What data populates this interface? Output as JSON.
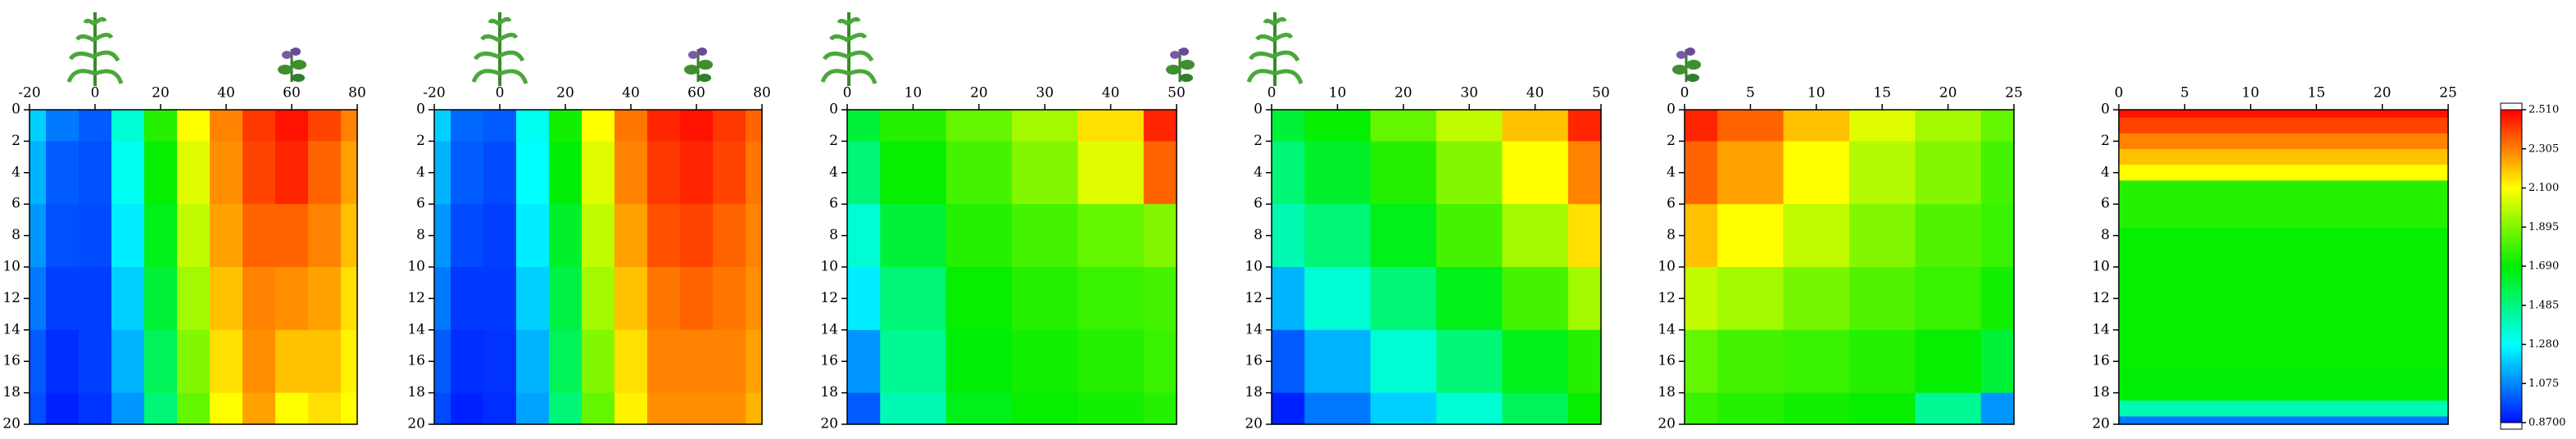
{
  "chart_data": [
    {
      "type": "heatmap",
      "x": [
        -20,
        -10,
        0,
        10,
        20,
        30,
        40,
        50,
        60,
        70,
        80
      ],
      "y": [
        0,
        4,
        8,
        12,
        16,
        20
      ],
      "z": [
        [
          1.2,
          1.05,
          1.0,
          1.35,
          1.75,
          2.1,
          2.3,
          2.42,
          2.48,
          2.4,
          2.3
        ],
        [
          1.15,
          1.0,
          0.98,
          1.3,
          1.7,
          2.05,
          2.28,
          2.4,
          2.45,
          2.35,
          2.25
        ],
        [
          1.1,
          0.98,
          0.97,
          1.25,
          1.65,
          2.0,
          2.25,
          2.35,
          2.35,
          2.3,
          2.2
        ],
        [
          1.05,
          0.95,
          0.95,
          1.2,
          1.6,
          1.95,
          2.2,
          2.3,
          2.28,
          2.25,
          2.15
        ],
        [
          1.0,
          0.92,
          0.95,
          1.15,
          1.55,
          1.9,
          2.15,
          2.28,
          2.2,
          2.2,
          2.12
        ],
        [
          0.98,
          0.9,
          0.93,
          1.1,
          1.5,
          1.85,
          2.1,
          2.25,
          2.1,
          2.15,
          2.1
        ]
      ],
      "xlim": [
        -20,
        80
      ],
      "xticks": [
        -20,
        0,
        20,
        40,
        60,
        80
      ],
      "ylim": [
        0,
        20
      ],
      "yticks": [
        0,
        2,
        4,
        6,
        8,
        10,
        12,
        14,
        16,
        18,
        20
      ]
    },
    {
      "type": "heatmap",
      "x": [
        -20,
        -10,
        0,
        10,
        20,
        30,
        40,
        50,
        60,
        70,
        80
      ],
      "y": [
        0,
        4,
        8,
        12,
        16,
        20
      ],
      "z": [
        [
          1.2,
          1.02,
          1.0,
          1.3,
          1.72,
          2.1,
          2.32,
          2.45,
          2.48,
          2.42,
          2.35
        ],
        [
          1.15,
          1.0,
          0.97,
          1.28,
          1.68,
          2.05,
          2.3,
          2.42,
          2.45,
          2.4,
          2.32
        ],
        [
          1.1,
          0.97,
          0.95,
          1.25,
          1.62,
          2.0,
          2.25,
          2.38,
          2.4,
          2.35,
          2.3
        ],
        [
          1.05,
          0.94,
          0.94,
          1.2,
          1.58,
          1.95,
          2.2,
          2.32,
          2.35,
          2.32,
          2.28
        ],
        [
          1.0,
          0.92,
          0.93,
          1.15,
          1.55,
          1.9,
          2.15,
          2.3,
          2.3,
          2.3,
          2.25
        ],
        [
          0.97,
          0.9,
          0.92,
          1.12,
          1.5,
          1.85,
          2.12,
          2.28,
          2.28,
          2.28,
          2.22
        ]
      ],
      "xlim": [
        -20,
        80
      ],
      "xticks": [
        -20,
        0,
        20,
        40,
        60,
        80
      ],
      "ylim": [
        0,
        20
      ],
      "yticks": [
        0,
        2,
        4,
        6,
        8,
        10,
        12,
        14,
        16,
        18,
        20
      ]
    },
    {
      "type": "heatmap",
      "x": [
        0,
        10,
        20,
        30,
        40,
        50
      ],
      "y": [
        0,
        4,
        8,
        12,
        16,
        20
      ],
      "z": [
        [
          1.6,
          1.75,
          1.85,
          1.95,
          2.15,
          2.45
        ],
        [
          1.5,
          1.7,
          1.8,
          1.9,
          2.05,
          2.35
        ],
        [
          1.35,
          1.6,
          1.75,
          1.8,
          1.85,
          1.9
        ],
        [
          1.25,
          1.5,
          1.7,
          1.75,
          1.78,
          1.8
        ],
        [
          1.1,
          1.45,
          1.68,
          1.72,
          1.75,
          1.78
        ],
        [
          1.0,
          1.4,
          1.65,
          1.7,
          1.72,
          1.75
        ]
      ],
      "xlim": [
        0,
        50
      ],
      "xticks": [
        0,
        10,
        20,
        30,
        40,
        50
      ],
      "ylim": [
        0,
        20
      ],
      "yticks": [
        0,
        2,
        4,
        6,
        8,
        10,
        12,
        14,
        16,
        18,
        20
      ]
    },
    {
      "type": "heatmap",
      "x": [
        0,
        10,
        20,
        30,
        40,
        50
      ],
      "y": [
        0,
        4,
        8,
        12,
        16,
        20
      ],
      "z": [
        [
          1.6,
          1.7,
          1.85,
          2.0,
          2.2,
          2.45
        ],
        [
          1.5,
          1.62,
          1.75,
          1.9,
          2.1,
          2.3
        ],
        [
          1.4,
          1.5,
          1.65,
          1.8,
          1.95,
          2.15
        ],
        [
          1.15,
          1.35,
          1.5,
          1.65,
          1.8,
          1.95
        ],
        [
          1.0,
          1.15,
          1.35,
          1.5,
          1.65,
          1.75
        ],
        [
          0.9,
          1.05,
          1.2,
          1.35,
          1.55,
          1.7
        ]
      ],
      "xlim": [
        0,
        50
      ],
      "xticks": [
        0,
        10,
        20,
        30,
        40,
        50
      ],
      "ylim": [
        0,
        20
      ],
      "yticks": [
        0,
        2,
        4,
        6,
        8,
        10,
        12,
        14,
        16,
        18,
        20
      ]
    },
    {
      "type": "heatmap",
      "x": [
        0,
        5,
        10,
        15,
        20,
        25
      ],
      "y": [
        0,
        4,
        8,
        12,
        16,
        20
      ],
      "z": [
        [
          2.45,
          2.35,
          2.2,
          2.05,
          1.95,
          1.85
        ],
        [
          2.35,
          2.25,
          2.1,
          1.98,
          1.9,
          1.8
        ],
        [
          2.2,
          2.1,
          2.0,
          1.9,
          1.82,
          1.78
        ],
        [
          2.0,
          1.95,
          1.88,
          1.82,
          1.78,
          1.72
        ],
        [
          1.85,
          1.8,
          1.78,
          1.75,
          1.7,
          1.6
        ],
        [
          1.78,
          1.75,
          1.72,
          1.7,
          1.45,
          1.1
        ]
      ],
      "xlim": [
        0,
        25
      ],
      "xticks": [
        0,
        5,
        10,
        15,
        20,
        25
      ],
      "ylim": [
        0,
        20
      ],
      "yticks": [
        0,
        2,
        4,
        6,
        8,
        10,
        12,
        14,
        16,
        18,
        20
      ]
    },
    {
      "type": "heatmap",
      "x": [
        0,
        25
      ],
      "y": [
        0,
        1,
        2,
        3,
        4,
        5,
        10,
        15,
        18,
        19,
        20
      ],
      "z": [
        [
          2.48,
          2.48
        ],
        [
          2.4,
          2.4
        ],
        [
          2.3,
          2.3
        ],
        [
          2.2,
          2.2
        ],
        [
          2.1,
          2.1
        ],
        [
          1.75,
          1.75
        ],
        [
          1.7,
          1.7
        ],
        [
          1.7,
          1.7
        ],
        [
          1.68,
          1.68
        ],
        [
          1.4,
          1.4
        ],
        [
          1.05,
          1.05
        ]
      ],
      "xlim": [
        0,
        25
      ],
      "xticks": [
        0,
        5,
        10,
        15,
        20,
        25
      ],
      "ylim": [
        0,
        20
      ],
      "yticks": [
        0,
        2,
        4,
        6,
        8,
        10,
        12,
        14,
        16,
        18,
        20
      ]
    },
    {
      "type": "colorbar",
      "zlim": [
        0.87,
        2.51
      ],
      "colors": [
        "#0010ff",
        "#00ffff",
        "#00ee00",
        "#ffff00",
        "#ff0000"
      ],
      "ticks": [
        {
          "value": 0.87,
          "label": "0.8700"
        },
        1.075,
        {
          "value": 1.28,
          "label": "1.280"
        },
        1.485,
        {
          "value": 1.69,
          "label": "1.690"
        },
        1.895,
        {
          "value": 2.1,
          "label": "2.100"
        },
        2.305,
        {
          "value": 2.51,
          "label": "2.510"
        }
      ]
    }
  ]
}
